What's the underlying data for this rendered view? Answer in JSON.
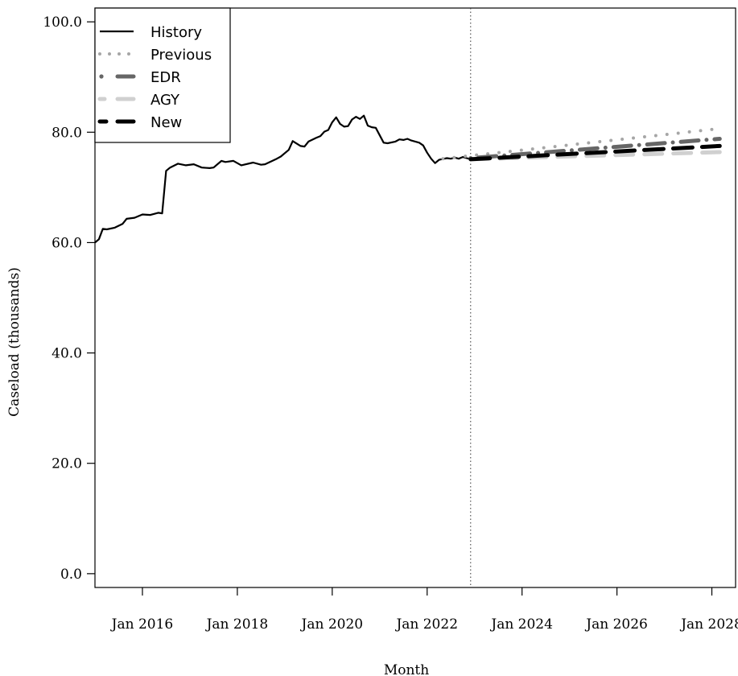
{
  "chart_data": {
    "type": "line",
    "title": "",
    "xlabel": "Month",
    "ylabel": "Caseload (thousands)",
    "ylim": [
      -2.5,
      102.5
    ],
    "xlim": [
      "2015-01",
      "2028-07"
    ],
    "x_ticks": [
      "2016-01",
      "2018-01",
      "2020-01",
      "2022-01",
      "2024-01",
      "2026-01",
      "2028-01"
    ],
    "x_tick_labels": [
      "Jan 2016",
      "Jan 2018",
      "Jan 2020",
      "Jan 2022",
      "Jan 2024",
      "Jan 2026",
      "Jan 2028"
    ],
    "y_ticks": [
      0,
      20,
      40,
      60,
      80,
      100
    ],
    "y_tick_labels": [
      "0.0",
      "20.0",
      "40.0",
      "60.0",
      "80.0",
      "100.0"
    ],
    "reference_line": {
      "x": "2022-12",
      "style": "dotted"
    },
    "legend": {
      "placement": "top-left",
      "entries": [
        "History",
        "Previous",
        "EDR",
        "AGY",
        "New"
      ]
    },
    "series": [
      {
        "name": "History",
        "color": "#000000",
        "style": "solid",
        "x": [
          "2015-01",
          "2015-02",
          "2015-03",
          "2015-04",
          "2015-06",
          "2015-08",
          "2015-09",
          "2015-11",
          "2016-01",
          "2016-03",
          "2016-05",
          "2016-06",
          "2016-07",
          "2016-08",
          "2016-10",
          "2016-12",
          "2017-02",
          "2017-04",
          "2017-06",
          "2017-07",
          "2017-09",
          "2017-10",
          "2017-12",
          "2018-02",
          "2018-05",
          "2018-07",
          "2018-08",
          "2018-11",
          "2018-12",
          "2019-02",
          "2019-03",
          "2019-05",
          "2019-06",
          "2019-07",
          "2019-09",
          "2019-10",
          "2019-11",
          "2019-12",
          "2020-01",
          "2020-02",
          "2020-03",
          "2020-04",
          "2020-05",
          "2020-06",
          "2020-07",
          "2020-08",
          "2020-09",
          "2020-10",
          "2020-11",
          "2020-12",
          "2021-02",
          "2021-03",
          "2021-05",
          "2021-06",
          "2021-07",
          "2021-08",
          "2021-09",
          "2021-11",
          "2021-12",
          "2022-01",
          "2022-02",
          "2022-03",
          "2022-04",
          "2022-06",
          "2022-07",
          "2022-08",
          "2022-09",
          "2022-10",
          "2022-11",
          "2022-12"
        ],
        "y": [
          60.0,
          60.6,
          62.5,
          62.4,
          62.7,
          63.4,
          64.3,
          64.5,
          65.1,
          65.0,
          65.4,
          65.3,
          73.0,
          73.6,
          74.3,
          74.0,
          74.2,
          73.6,
          73.5,
          73.6,
          74.8,
          74.6,
          74.8,
          74.0,
          74.5,
          74.1,
          74.2,
          75.2,
          75.6,
          76.8,
          78.4,
          77.5,
          77.4,
          78.3,
          79.0,
          79.3,
          80.1,
          80.4,
          81.8,
          82.7,
          81.5,
          81.0,
          81.1,
          82.3,
          82.8,
          82.4,
          83.0,
          81.2,
          80.9,
          80.8,
          78.1,
          78.0,
          78.3,
          78.7,
          78.6,
          78.8,
          78.5,
          78.1,
          77.6,
          76.3,
          75.2,
          74.4,
          75.0,
          75.3,
          75.2,
          75.4,
          75.2,
          75.5,
          75.3,
          75.1
        ]
      },
      {
        "name": "Previous",
        "color": "#a6a6a6",
        "style": "dotted",
        "x": [
          "2022-05",
          "2028-01"
        ],
        "y": [
          75.2,
          80.5
        ]
      },
      {
        "name": "EDR",
        "color": "#666666",
        "style": "dot-dash",
        "x": [
          "2022-12",
          "2028-03"
        ],
        "y": [
          75.3,
          78.8
        ]
      },
      {
        "name": "AGY",
        "color": "#d0d0d0",
        "style": "dashed",
        "x": [
          "2022-12",
          "2028-03"
        ],
        "y": [
          75.1,
          76.4
        ]
      },
      {
        "name": "New",
        "color": "#000000",
        "style": "dashed",
        "x": [
          "2022-12",
          "2028-03"
        ],
        "y": [
          75.1,
          77.5
        ]
      }
    ]
  }
}
